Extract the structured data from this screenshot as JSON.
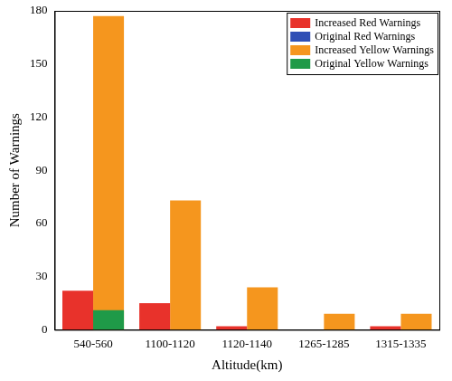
{
  "chart_data": {
    "type": "bar",
    "x_label": "Altitude(km)",
    "y_label": "Number of Warnings",
    "categories": [
      "540-560",
      "1100-1120",
      "1120-1140",
      "1265-1285",
      "1315-1335"
    ],
    "series": [
      {
        "name": "Increased Red Warnings",
        "color": "#e8322b",
        "values": [
          22,
          15,
          2,
          0,
          2
        ]
      },
      {
        "name": "Original Red Warnings",
        "color": "#2f4fb5",
        "values": [
          0,
          0,
          0,
          0,
          0
        ]
      },
      {
        "name": "Increased Yellow Warnings",
        "color": "#f5961e",
        "values": [
          177,
          73,
          24,
          9,
          9
        ]
      },
      {
        "name": "Original Yellow Warnings",
        "color": "#1f9a48",
        "values": [
          11,
          0,
          0,
          0,
          0
        ]
      }
    ],
    "ylim": [
      0,
      180
    ],
    "yticks": [
      0,
      30,
      60,
      90,
      120,
      150,
      180
    ],
    "grid": false,
    "legend": "upper right",
    "stacked": false
  }
}
